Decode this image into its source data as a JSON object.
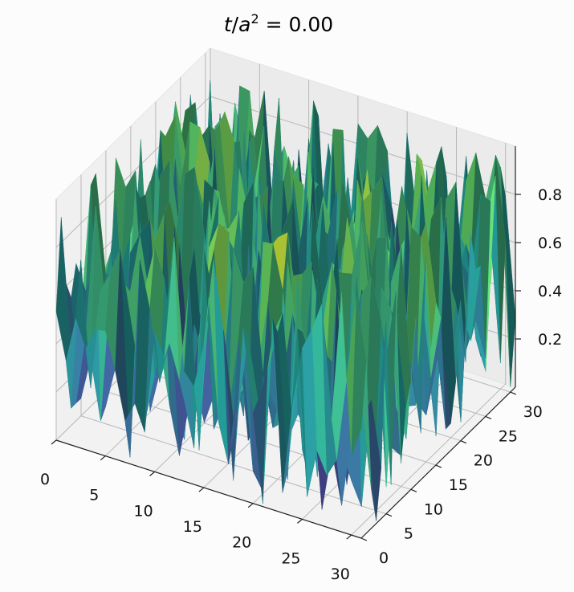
{
  "chart_data": {
    "type": "surface",
    "title": "t/a² = 0.00",
    "title_parts": {
      "var": "t",
      "sep": "/",
      "base": "a",
      "exp": "2",
      "eq": " = 0.00"
    },
    "colormap": "viridis",
    "x": {
      "ticks": [
        0,
        5,
        10,
        15,
        20,
        25,
        30
      ],
      "range": [
        0,
        31
      ]
    },
    "y": {
      "ticks": [
        0,
        5,
        10,
        15,
        20,
        25,
        30
      ],
      "range": [
        0,
        31
      ]
    },
    "z": {
      "ticks": [
        0.2,
        0.4,
        0.6,
        0.8
      ],
      "tick_labels": [
        "0.2",
        "0.4",
        "0.6",
        "0.8"
      ],
      "range": [
        0.0,
        1.0
      ]
    },
    "grid": true,
    "surface": {
      "grid_size": 32,
      "description": "random field of values uniformly spread between 0 and 1 at each of the 32x32 grid nodes"
    }
  },
  "colors": {
    "background": "#fcfcfc",
    "viridis_stops": [
      "#440154",
      "#3b528b",
      "#21918c",
      "#5ec962",
      "#fde725"
    ]
  }
}
